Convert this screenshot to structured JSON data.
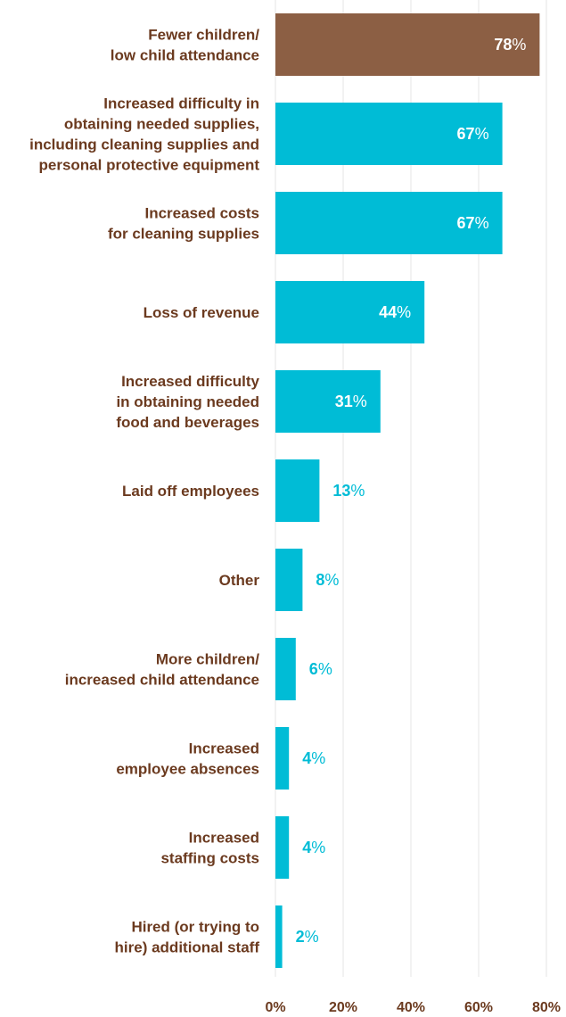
{
  "chart_data": {
    "type": "bar",
    "orientation": "horizontal",
    "title": "",
    "xlabel": "",
    "ylabel": "",
    "xlim": [
      0,
      80
    ],
    "grid": "vertical",
    "legend": "none",
    "value_suffix": "%",
    "categories": [
      [
        "Fewer children/",
        "low child attendance"
      ],
      [
        "Increased difficulty in",
        "obtaining needed supplies,",
        "including cleaning supplies and",
        "personal protective equipment"
      ],
      [
        "Increased costs",
        "for cleaning supplies"
      ],
      [
        "Loss of revenue"
      ],
      [
        "Increased difficulty",
        "in obtaining needed",
        "food and beverages"
      ],
      [
        "Laid off employees"
      ],
      [
        "Other"
      ],
      [
        "More children/",
        "increased child attendance"
      ],
      [
        "Increased",
        "employee absences"
      ],
      [
        "Increased",
        "staffing costs"
      ],
      [
        "Hired (or trying to",
        "hire) additional staff"
      ]
    ],
    "values": [
      78,
      67,
      67,
      44,
      31,
      13,
      8,
      6,
      4,
      4,
      2
    ],
    "highlight_index": 0,
    "x_ticks": [
      "0%",
      "20%",
      "40%",
      "60%",
      "80%"
    ],
    "colors": {
      "bar": "#00bcd6",
      "highlight": "#8c5f44",
      "label_text": "#6b3a1f",
      "inside_value": "#ffffff",
      "outside_value": "#00bcd6",
      "grid": "#e4e4e4"
    }
  }
}
